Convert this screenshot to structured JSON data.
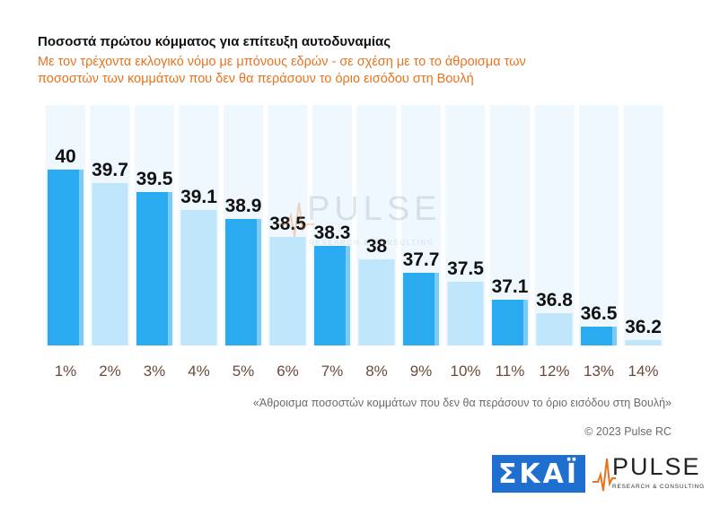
{
  "header": {
    "title": "Ποσοστά πρώτου κόμματος για επίτευξη αυτοδυναμίας",
    "subtitle": "Με τον τρέχοντα εκλογικό νόμο με μπόνους εδρών - σε σχέση με το το άθροισμα των ποσοστών των κομμάτων που δεν θα περάσουν το όριο εισόδου στη Βουλή"
  },
  "chart_data": {
    "type": "bar",
    "categories": [
      "1%",
      "2%",
      "3%",
      "4%",
      "5%",
      "6%",
      "7%",
      "8%",
      "9%",
      "10%",
      "11%",
      "12%",
      "13%",
      "14%"
    ],
    "values": [
      40,
      39.7,
      39.5,
      39.1,
      38.9,
      38.5,
      38.3,
      38,
      37.7,
      37.5,
      37.1,
      36.8,
      36.5,
      36.2
    ],
    "value_labels": [
      "40",
      "39.7",
      "39.5",
      "39.1",
      "38.9",
      "38.5",
      "38.3",
      "38",
      "37.7",
      "37.5",
      "37.1",
      "36.8",
      "36.5",
      "36.2"
    ],
    "xlabel": "«Άθροισμα ποσοστών κομμάτων που δεν θα περάσουν το όριο εισόδου στη Βουλή»",
    "ylabel": "",
    "colors": {
      "dark": "#2aaaf0",
      "light": "#bfe6fb",
      "background_column": "#eef8fe"
    },
    "grid": false,
    "legend": "none"
  },
  "watermark": {
    "brand": "PULSE",
    "tagline": "RESEARCH & CONSULTING"
  },
  "footer": {
    "copyright": "© 2023 Pulse RC",
    "skai_logo": "ΣΚΑΪ",
    "pulse_logo": "PULSE",
    "pulse_tagline": "RESEARCH & CONSULTING"
  }
}
